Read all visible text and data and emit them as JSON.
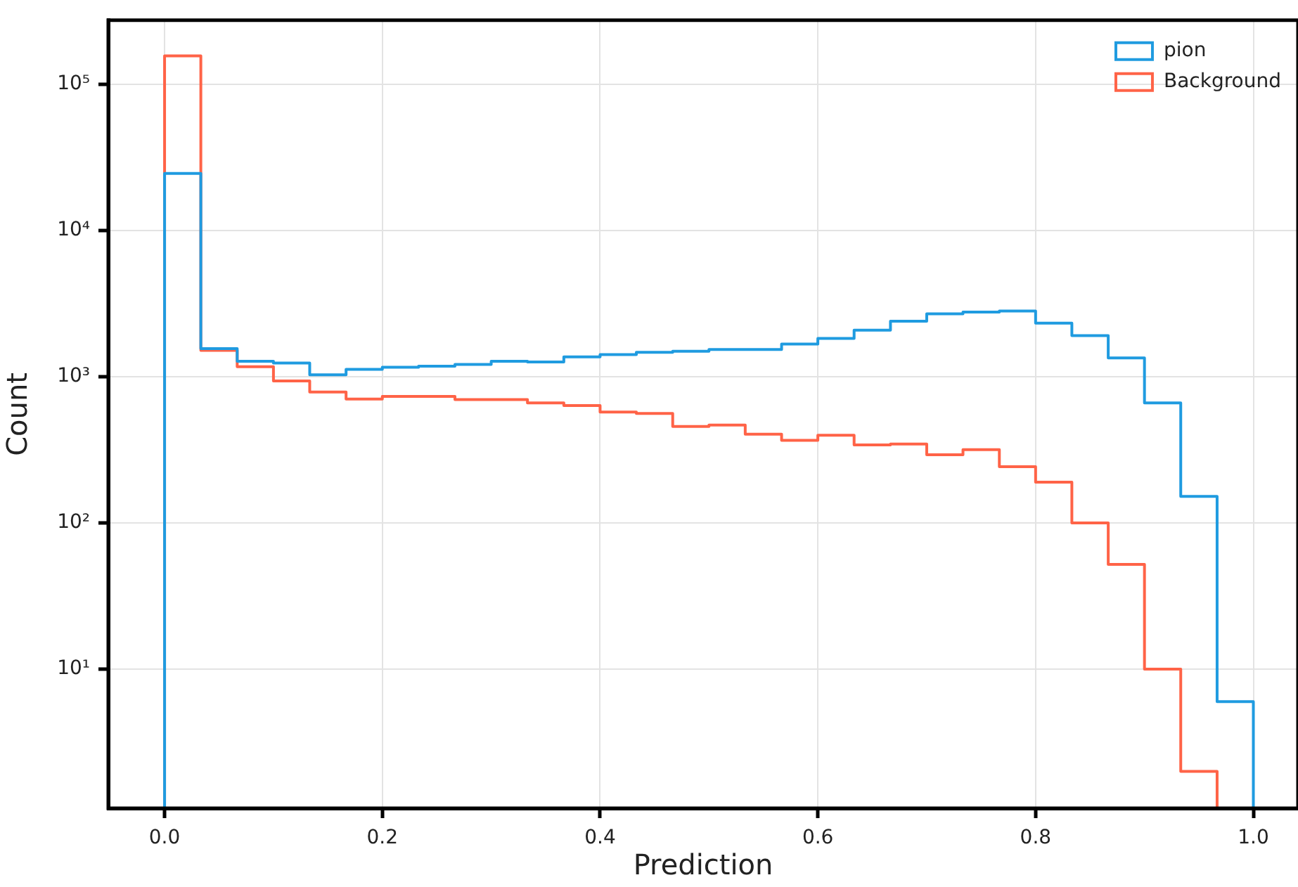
{
  "chart_data": {
    "type": "histogram",
    "xlabel": "Prediction",
    "ylabel": "Count",
    "bins": [
      0,
      0.0333,
      0.0667,
      0.1,
      0.1333,
      0.1667,
      0.2,
      0.2333,
      0.2667,
      0.3,
      0.3333,
      0.3667,
      0.4,
      0.4333,
      0.4667,
      0.5,
      0.5333,
      0.5667,
      0.6,
      0.6333,
      0.6667,
      0.7,
      0.7333,
      0.7667,
      0.8,
      0.8333,
      0.8667,
      0.9,
      0.9333,
      0.9667,
      1
    ],
    "series": [
      {
        "name": "pion",
        "color": "#1f9be0",
        "values": [
          24500,
          1555,
          1275,
          1240,
          1030,
          1120,
          1160,
          1180,
          1213,
          1275,
          1259,
          1365,
          1413,
          1466,
          1490,
          1531,
          1531,
          1671,
          1824,
          2080,
          2390,
          2690,
          2765,
          2810,
          2320,
          1905,
          1343,
          662,
          152,
          6
        ]
      },
      {
        "name": "Background",
        "color": "#ff6347",
        "bins": [
          0,
          0.0333,
          0.0667,
          0.1,
          0.1333,
          0.1667,
          0.2,
          0.2333,
          0.2667,
          0.3,
          0.3333,
          0.3667,
          0.4,
          0.4333,
          0.4667,
          0.5,
          0.5333,
          0.5667,
          0.6,
          0.6333,
          0.6667,
          0.7,
          0.7333,
          0.7667,
          0.8,
          0.8333,
          0.8667,
          0.9,
          0.9333,
          0.9667
        ],
        "values": [
          156000,
          1510,
          1170,
          933,
          784,
          702,
          733,
          733,
          697,
          697,
          662,
          634,
          573,
          560,
          457,
          467,
          404,
          367,
          397,
          341,
          346,
          292,
          317,
          242,
          190,
          100,
          52,
          10,
          2
        ]
      }
    ],
    "log": "y",
    "xlim": [
      -0.0517,
      1.041
    ],
    "ylim": [
      1.12,
      273000
    ],
    "xticks": [
      {
        "value": 0,
        "label": "0.0"
      },
      {
        "value": 0.2,
        "label": "0.2"
      },
      {
        "value": 0.4,
        "label": "0.4"
      },
      {
        "value": 0.6,
        "label": "0.6"
      },
      {
        "value": 0.8,
        "label": "0.8"
      },
      {
        "value": 1,
        "label": "1.0"
      }
    ],
    "yticks": [
      {
        "value": 10,
        "label": "10¹"
      },
      {
        "value": 100,
        "label": "10²"
      },
      {
        "value": 1000,
        "label": "10³"
      },
      {
        "value": 10000,
        "label": "10⁴"
      },
      {
        "value": 100000,
        "label": "10⁵"
      }
    ],
    "grid": true,
    "legend": "top right"
  }
}
